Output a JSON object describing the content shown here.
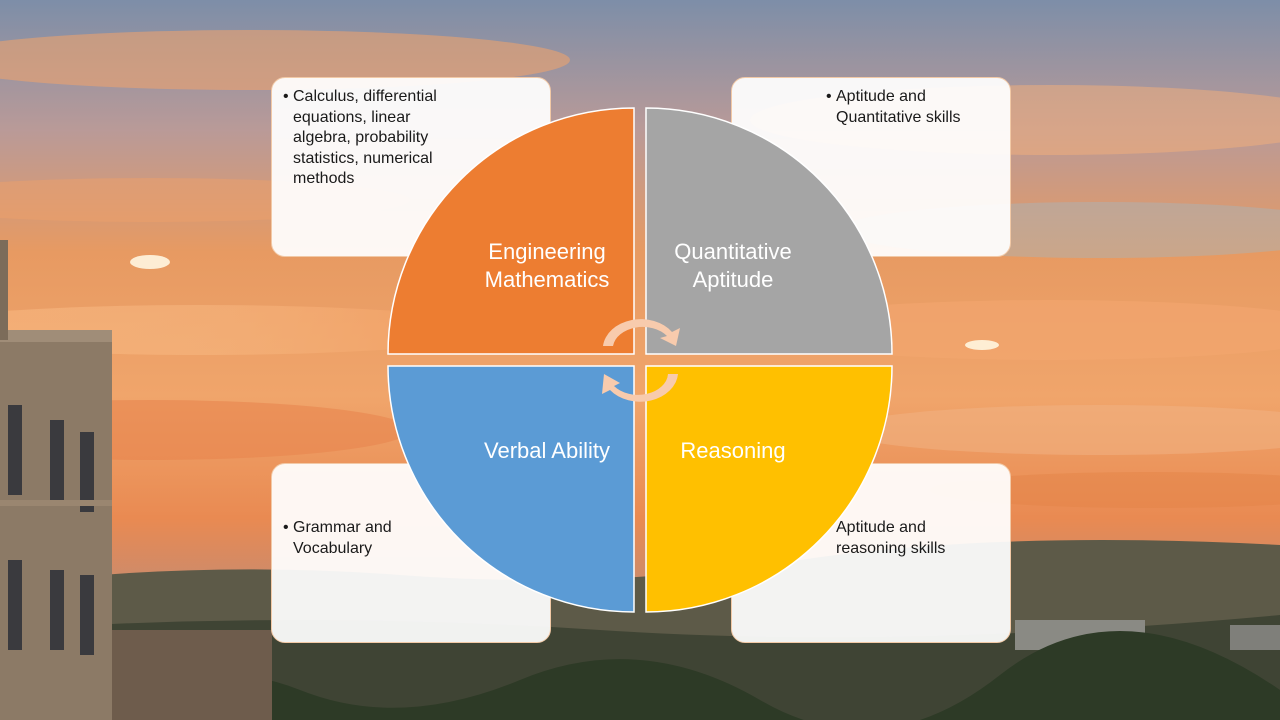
{
  "diagram": {
    "segments": [
      {
        "id": "top-left",
        "label": "Engineering\nMathematics",
        "color": "#ED7D31"
      },
      {
        "id": "top-right",
        "label": "Quantitative\nAptitude",
        "color": "#A5A5A5"
      },
      {
        "id": "bottom-left",
        "label": "Verbal Ability",
        "color": "#5B9BD5"
      },
      {
        "id": "bottom-right",
        "label": "Reasoning",
        "color": "#FFC000"
      }
    ],
    "cards": {
      "top_left": "Calculus, differential equations, linear algebra, probability statistics, numerical methods",
      "top_right": "Aptitude and Quantitative skills",
      "bottom_left": "Grammar and Vocabulary",
      "bottom_right": "Aptitude and reasoning skills"
    },
    "arrow_color": "#F8CBAD"
  }
}
